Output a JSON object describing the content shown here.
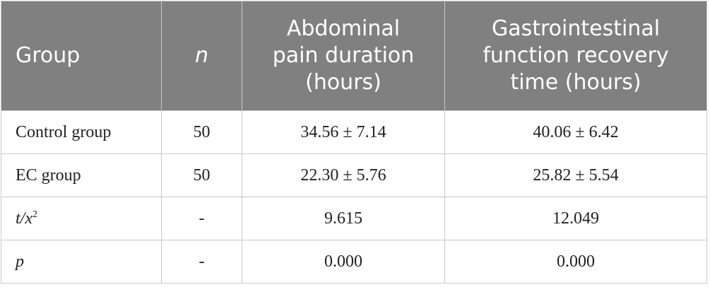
{
  "table": {
    "header": [
      [
        "Group"
      ],
      [
        "n"
      ],
      [
        "Abdominal",
        "pain duration",
        "(hours)"
      ],
      [
        "Gastrointestinal",
        "function recovery",
        "time (hours)"
      ]
    ],
    "rows": [
      [
        "Control group",
        "50",
        "34.56 ± 7.14",
        "40.06 ± 6.42"
      ],
      [
        "EC group",
        "50",
        "22.30 ± 5.76",
        "25.82 ± 5.54"
      ],
      [
        {
          "base": "t/x",
          "sup": "2"
        },
        "-",
        "9.615",
        "12.049"
      ],
      [
        "p",
        "-",
        "0.000",
        "0.000"
      ]
    ]
  }
}
